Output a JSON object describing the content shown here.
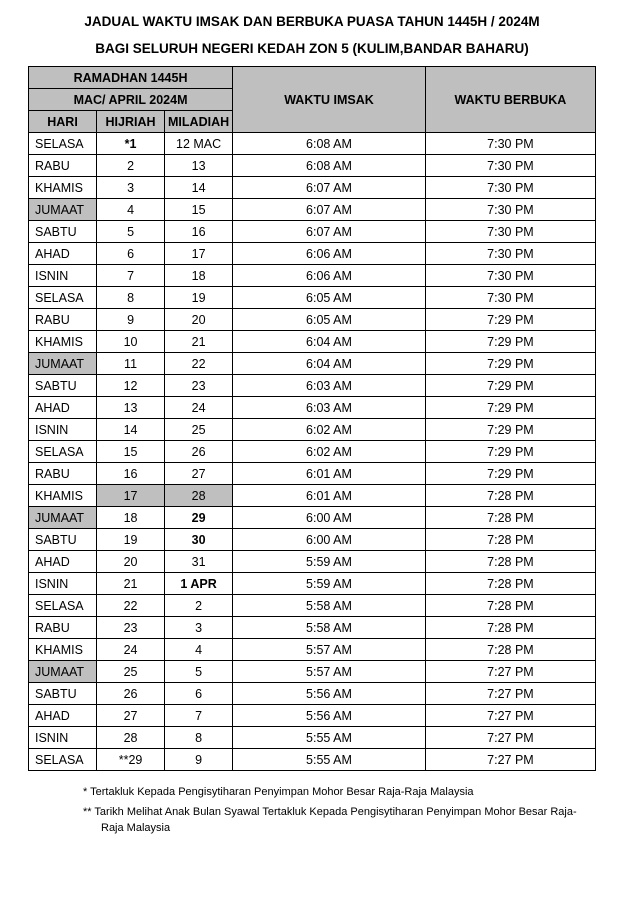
{
  "title1": "JADUAL WAKTU IMSAK DAN BERBUKA PUASA TAHUN 1445H / 2024M",
  "title2": "BAGI SELURUH NEGERI KEDAH ZON 5 (KULIM,BANDAR BAHARU)",
  "headers": {
    "ramadhan": "RAMADHAN 1445H",
    "month": "MAC/ APRIL 2024M",
    "hari": "HARI",
    "hijriah": "HIJRIAH",
    "miladiah": "MILADIAH",
    "imsak": "WAKTU IMSAK",
    "berbuka": "WAKTU BERBUKA"
  },
  "rows": [
    {
      "hari": "SELASA",
      "hijri": "*1",
      "miladi": "12 MAC",
      "imsak": "6:08 AM",
      "berbuka": "7:30 PM",
      "jumaat": false,
      "hijri_bold": true,
      "miladi_bold": false,
      "hijri_gray": false,
      "miladi_gray": false
    },
    {
      "hari": "RABU",
      "hijri": "2",
      "miladi": "13",
      "imsak": "6:08 AM",
      "berbuka": "7:30 PM",
      "jumaat": false,
      "hijri_bold": false,
      "miladi_bold": false,
      "hijri_gray": false,
      "miladi_gray": false
    },
    {
      "hari": "KHAMIS",
      "hijri": "3",
      "miladi": "14",
      "imsak": "6:07 AM",
      "berbuka": "7:30 PM",
      "jumaat": false,
      "hijri_bold": false,
      "miladi_bold": false,
      "hijri_gray": false,
      "miladi_gray": false
    },
    {
      "hari": "JUMAAT",
      "hijri": "4",
      "miladi": "15",
      "imsak": "6:07 AM",
      "berbuka": "7:30 PM",
      "jumaat": true,
      "hijri_bold": false,
      "miladi_bold": false,
      "hijri_gray": false,
      "miladi_gray": false
    },
    {
      "hari": "SABTU",
      "hijri": "5",
      "miladi": "16",
      "imsak": "6:07 AM",
      "berbuka": "7:30 PM",
      "jumaat": false,
      "hijri_bold": false,
      "miladi_bold": false,
      "hijri_gray": false,
      "miladi_gray": false
    },
    {
      "hari": "AHAD",
      "hijri": "6",
      "miladi": "17",
      "imsak": "6:06 AM",
      "berbuka": "7:30 PM",
      "jumaat": false,
      "hijri_bold": false,
      "miladi_bold": false,
      "hijri_gray": false,
      "miladi_gray": false
    },
    {
      "hari": "ISNIN",
      "hijri": "7",
      "miladi": "18",
      "imsak": "6:06 AM",
      "berbuka": "7:30 PM",
      "jumaat": false,
      "hijri_bold": false,
      "miladi_bold": false,
      "hijri_gray": false,
      "miladi_gray": false
    },
    {
      "hari": "SELASA",
      "hijri": "8",
      "miladi": "19",
      "imsak": "6:05 AM",
      "berbuka": "7:30 PM",
      "jumaat": false,
      "hijri_bold": false,
      "miladi_bold": false,
      "hijri_gray": false,
      "miladi_gray": false
    },
    {
      "hari": "RABU",
      "hijri": "9",
      "miladi": "20",
      "imsak": "6:05 AM",
      "berbuka": "7:29 PM",
      "jumaat": false,
      "hijri_bold": false,
      "miladi_bold": false,
      "hijri_gray": false,
      "miladi_gray": false
    },
    {
      "hari": "KHAMIS",
      "hijri": "10",
      "miladi": "21",
      "imsak": "6:04 AM",
      "berbuka": "7:29 PM",
      "jumaat": false,
      "hijri_bold": false,
      "miladi_bold": false,
      "hijri_gray": false,
      "miladi_gray": false
    },
    {
      "hari": "JUMAAT",
      "hijri": "11",
      "miladi": "22",
      "imsak": "6:04 AM",
      "berbuka": "7:29 PM",
      "jumaat": true,
      "hijri_bold": false,
      "miladi_bold": false,
      "hijri_gray": false,
      "miladi_gray": false
    },
    {
      "hari": "SABTU",
      "hijri": "12",
      "miladi": "23",
      "imsak": "6:03 AM",
      "berbuka": "7:29 PM",
      "jumaat": false,
      "hijri_bold": false,
      "miladi_bold": false,
      "hijri_gray": false,
      "miladi_gray": false
    },
    {
      "hari": "AHAD",
      "hijri": "13",
      "miladi": "24",
      "imsak": "6:03 AM",
      "berbuka": "7:29 PM",
      "jumaat": false,
      "hijri_bold": false,
      "miladi_bold": false,
      "hijri_gray": false,
      "miladi_gray": false
    },
    {
      "hari": "ISNIN",
      "hijri": "14",
      "miladi": "25",
      "imsak": "6:02 AM",
      "berbuka": "7:29 PM",
      "jumaat": false,
      "hijri_bold": false,
      "miladi_bold": false,
      "hijri_gray": false,
      "miladi_gray": false
    },
    {
      "hari": "SELASA",
      "hijri": "15",
      "miladi": "26",
      "imsak": "6:02 AM",
      "berbuka": "7:29 PM",
      "jumaat": false,
      "hijri_bold": false,
      "miladi_bold": false,
      "hijri_gray": false,
      "miladi_gray": false
    },
    {
      "hari": "RABU",
      "hijri": "16",
      "miladi": "27",
      "imsak": "6:01 AM",
      "berbuka": "7:29 PM",
      "jumaat": false,
      "hijri_bold": false,
      "miladi_bold": false,
      "hijri_gray": false,
      "miladi_gray": false
    },
    {
      "hari": "KHAMIS",
      "hijri": "17",
      "miladi": "28",
      "imsak": "6:01 AM",
      "berbuka": "7:28 PM",
      "jumaat": false,
      "hijri_bold": false,
      "miladi_bold": false,
      "hijri_gray": true,
      "miladi_gray": true
    },
    {
      "hari": "JUMAAT",
      "hijri": "18",
      "miladi": "29",
      "imsak": "6:00 AM",
      "berbuka": "7:28 PM",
      "jumaat": true,
      "hijri_bold": false,
      "miladi_bold": true,
      "hijri_gray": false,
      "miladi_gray": false
    },
    {
      "hari": "SABTU",
      "hijri": "19",
      "miladi": "30",
      "imsak": "6:00 AM",
      "berbuka": "7:28 PM",
      "jumaat": false,
      "hijri_bold": false,
      "miladi_bold": true,
      "hijri_gray": false,
      "miladi_gray": false
    },
    {
      "hari": "AHAD",
      "hijri": "20",
      "miladi": "31",
      "imsak": "5:59 AM",
      "berbuka": "7:28 PM",
      "jumaat": false,
      "hijri_bold": false,
      "miladi_bold": false,
      "hijri_gray": false,
      "miladi_gray": false
    },
    {
      "hari": "ISNIN",
      "hijri": "21",
      "miladi": "1 APR",
      "imsak": "5:59 AM",
      "berbuka": "7:28 PM",
      "jumaat": false,
      "hijri_bold": false,
      "miladi_bold": true,
      "hijri_gray": false,
      "miladi_gray": false
    },
    {
      "hari": "SELASA",
      "hijri": "22",
      "miladi": "2",
      "imsak": "5:58 AM",
      "berbuka": "7:28 PM",
      "jumaat": false,
      "hijri_bold": false,
      "miladi_bold": false,
      "hijri_gray": false,
      "miladi_gray": false
    },
    {
      "hari": "RABU",
      "hijri": "23",
      "miladi": "3",
      "imsak": "5:58 AM",
      "berbuka": "7:28 PM",
      "jumaat": false,
      "hijri_bold": false,
      "miladi_bold": false,
      "hijri_gray": false,
      "miladi_gray": false
    },
    {
      "hari": "KHAMIS",
      "hijri": "24",
      "miladi": "4",
      "imsak": "5:57 AM",
      "berbuka": "7:28 PM",
      "jumaat": false,
      "hijri_bold": false,
      "miladi_bold": false,
      "hijri_gray": false,
      "miladi_gray": false
    },
    {
      "hari": "JUMAAT",
      "hijri": "25",
      "miladi": "5",
      "imsak": "5:57 AM",
      "berbuka": "7:27 PM",
      "jumaat": true,
      "hijri_bold": false,
      "miladi_bold": false,
      "hijri_gray": false,
      "miladi_gray": false
    },
    {
      "hari": "SABTU",
      "hijri": "26",
      "miladi": "6",
      "imsak": "5:56 AM",
      "berbuka": "7:27 PM",
      "jumaat": false,
      "hijri_bold": false,
      "miladi_bold": false,
      "hijri_gray": false,
      "miladi_gray": false
    },
    {
      "hari": "AHAD",
      "hijri": "27",
      "miladi": "7",
      "imsak": "5:56 AM",
      "berbuka": "7:27 PM",
      "jumaat": false,
      "hijri_bold": false,
      "miladi_bold": false,
      "hijri_gray": false,
      "miladi_gray": false
    },
    {
      "hari": "ISNIN",
      "hijri": "28",
      "miladi": "8",
      "imsak": "5:55 AM",
      "berbuka": "7:27 PM",
      "jumaat": false,
      "hijri_bold": false,
      "miladi_bold": false,
      "hijri_gray": false,
      "miladi_gray": false
    },
    {
      "hari": "SELASA",
      "hijri": "**29",
      "miladi": "9",
      "imsak": "5:55 AM",
      "berbuka": "7:27 PM",
      "jumaat": false,
      "hijri_bold": false,
      "miladi_bold": false,
      "hijri_gray": false,
      "miladi_gray": false
    }
  ],
  "footnote1": "*  Tertakluk Kepada Pengisytiharan Penyimpan Mohor Besar Raja-Raja Malaysia",
  "footnote2": "** Tarikh Melihat Anak Bulan Syawal Tertakluk Kepada Pengisytiharan Penyimpan Mohor Besar Raja-Raja Malaysia",
  "colors": {
    "header_gray": "#bfbfbf",
    "border": "#000000",
    "bg": "#ffffff",
    "text": "#000000"
  }
}
